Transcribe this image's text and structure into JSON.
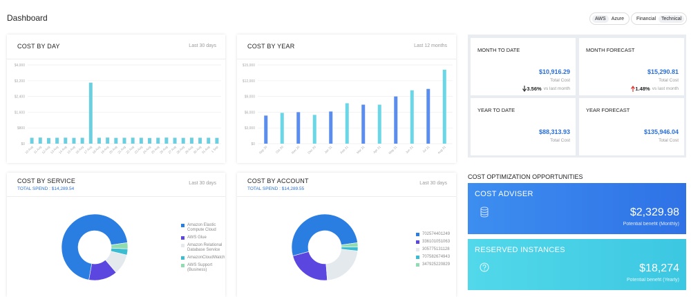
{
  "header": {
    "title": "Dashboard",
    "cloud_toggle": [
      "AWS",
      "Azure"
    ],
    "view_toggle": [
      "Financial",
      "Technical"
    ]
  },
  "cost_by_day": {
    "type": "bar",
    "title": "COST BY DAY",
    "period": "Last 30 days",
    "categories": [
      "10 Aug",
      "11 Aug",
      "12 Aug",
      "13 Aug",
      "14 Aug",
      "15 Aug",
      "16 Aug",
      "17 Aug",
      "18 Aug",
      "19 Aug",
      "20 Aug",
      "21 Aug",
      "22 Aug",
      "23 Aug",
      "24 Aug",
      "25 Aug",
      "26 Aug",
      "27 Aug",
      "28 Aug",
      "29 Aug",
      "30 Aug",
      "31 Aug",
      "1 Sep"
    ],
    "values": [
      300,
      310,
      290,
      300,
      305,
      295,
      300,
      3100,
      300,
      310,
      295,
      300,
      305,
      300,
      290,
      300,
      310,
      300,
      295,
      305,
      300,
      300,
      295
    ],
    "color": "#6ccfe0",
    "ylim": [
      0,
      4000
    ],
    "yticks": [
      {
        "value": 0,
        "label": "$0"
      },
      {
        "value": 800,
        "label": "$800"
      },
      {
        "value": 1600,
        "label": "$1,600"
      },
      {
        "value": 2400,
        "label": "$2,400"
      },
      {
        "value": 3200,
        "label": "$3,200"
      },
      {
        "value": 4000,
        "label": "$4,000"
      }
    ],
    "grid": true
  },
  "cost_by_year": {
    "type": "bar",
    "title": "COST BY YEAR",
    "period": "Last 12 months",
    "categories": [
      "Sep 20",
      "Oct 20",
      "Nov 20",
      "Dec 20",
      "Jan 21",
      "Feb 21",
      "Mar 21",
      "Apr 21",
      "May 21",
      "Jun 21",
      "Jul 21",
      "Aug 21"
    ],
    "values": [
      5350,
      5870,
      6000,
      5480,
      6130,
      7700,
      7430,
      7430,
      9000,
      10170,
      10430,
      14090
    ],
    "colors": [
      "#5b8def",
      "#6ad6e6",
      "#5b8def",
      "#6ad6e6",
      "#5b8def",
      "#6ad6e6",
      "#5b8def",
      "#6ad6e6",
      "#5b8def",
      "#6ad6e6",
      "#5b8def",
      "#6ad6e6"
    ],
    "ylim": [
      0,
      15000
    ],
    "yticks": [
      {
        "value": 0,
        "label": "$0"
      },
      {
        "value": 3000,
        "label": "$3,000"
      },
      {
        "value": 6000,
        "label": "$6,000"
      },
      {
        "value": 9000,
        "label": "$9,000"
      },
      {
        "value": 12000,
        "label": "$12,000"
      },
      {
        "value": 15000,
        "label": "$15,000"
      }
    ],
    "grid": true
  },
  "kpis": [
    {
      "title": "MONTH TO DATE",
      "value": "$10,916.29",
      "caption": "Total Cost",
      "change": "3.56%",
      "change_caption": "vs last month"
    },
    {
      "title": "MONTH FORECAST",
      "value": "$15,290.81",
      "caption": "Total Cost",
      "change": "1.48%",
      "change_caption": "vs last month"
    },
    {
      "title": "YEAR TO DATE",
      "value": "$88,313.93",
      "caption": "Total Cost"
    },
    {
      "title": "YEAR FORECAST",
      "value": "$135,946.04",
      "caption": "Total Cost"
    }
  ],
  "cost_by_service": {
    "type": "pie",
    "title": "COST BY SERVICE",
    "total": "TOTAL SPEND : $14,289.54",
    "period": "Last 30 days",
    "categories": [
      "Amazon Elastic Compute Cloud",
      "AWS Glue",
      "Amazon Relational Database Service",
      "AmazonCloudWatch",
      "AWS Support (Business)"
    ],
    "values": [
      70,
      14,
      10,
      3,
      3
    ],
    "colors": [
      "#2a7de1",
      "#5b46e0",
      "#e4e9ee",
      "#3dbbd0",
      "#8fdcb0"
    ]
  },
  "cost_by_account": {
    "type": "pie",
    "title": "COST BY ACCOUNT",
    "total": "TOTAL SPEND : $14,289.55",
    "period": "Last 30 days",
    "categories": [
      "702574401249",
      "336101051063",
      "305775131128",
      "707582674943",
      "347925220829"
    ],
    "values": [
      52,
      22,
      22,
      2,
      2
    ],
    "colors": [
      "#2a7de1",
      "#5b46e0",
      "#e4e9ee",
      "#3dbbd0",
      "#8fdcb0"
    ]
  },
  "optimization": {
    "title": "COST OPTIMIZATION OPPORTUNITIES",
    "cards": [
      {
        "title": "COST ADVISER",
        "value": "$2,329.98",
        "caption": "Potential benefit (Monthly)"
      },
      {
        "title": "RESERVED INSTANCES",
        "value": "$18,274",
        "caption": "Potential benefit (Yearly)"
      }
    ]
  }
}
